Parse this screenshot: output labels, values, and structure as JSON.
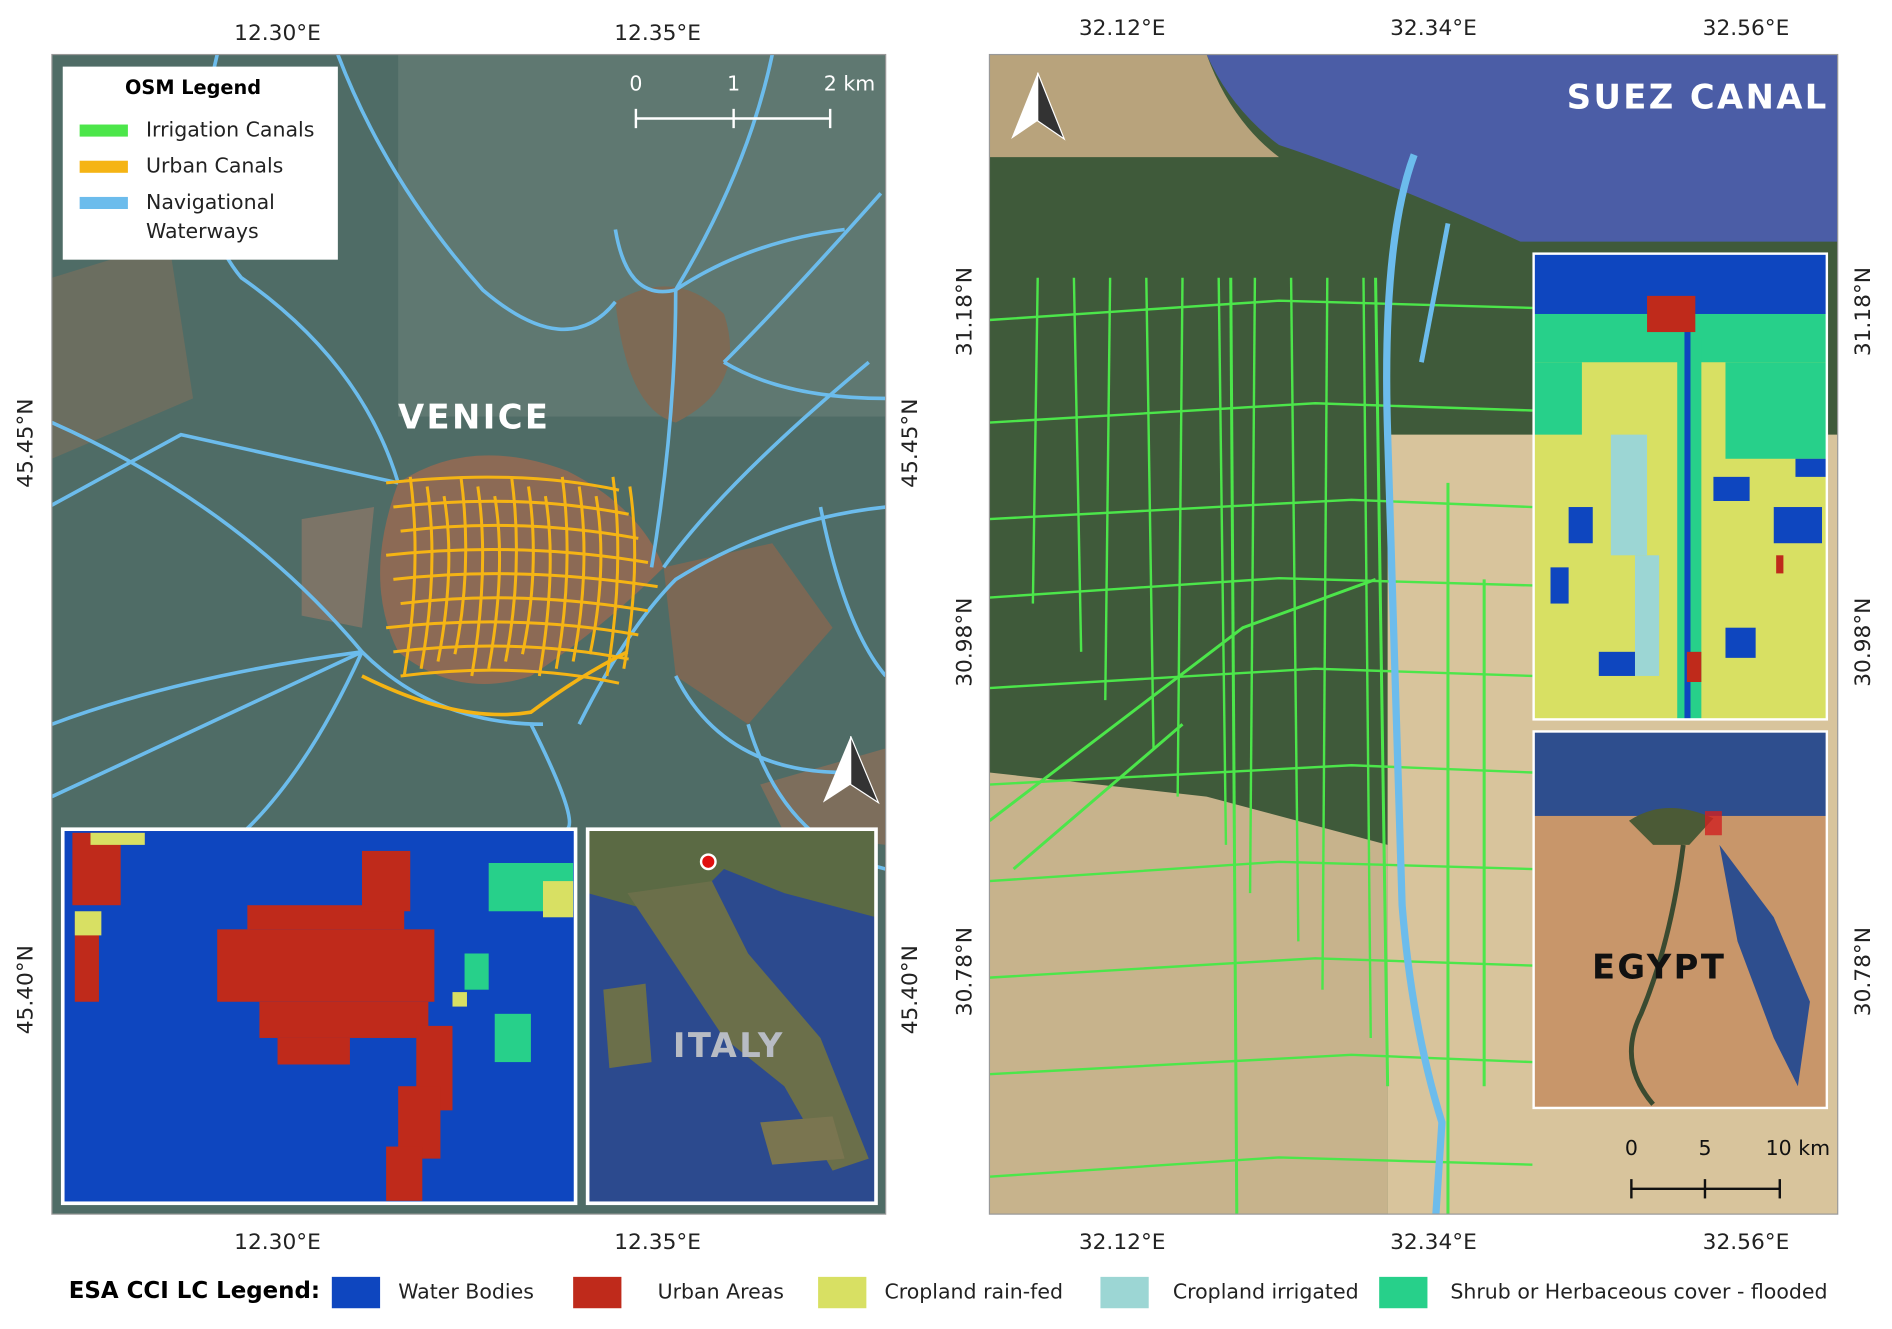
{
  "panels": [
    {
      "top_ticks": [
        "12.30°E",
        "12.35°E"
      ],
      "bottom_ticks": [
        "12.30°E",
        "12.35°E"
      ],
      "left_ticks": [
        "45.45°N",
        "45.40°N"
      ],
      "right_ticks": [
        "45.45°N",
        "45.40°N"
      ],
      "place_label": "VENICE",
      "inset_label": "ITALY",
      "scale_bar": [
        "0",
        "1",
        "2 km"
      ]
    },
    {
      "top_ticks": [
        "32.12°E",
        "32.34°E",
        "32.56°E"
      ],
      "bottom_ticks": [
        "32.12°E",
        "32.34°E",
        "32.56°E"
      ],
      "left_ticks": [
        "31.18°N",
        "30.98°N",
        "30.78°N"
      ],
      "right_ticks": [
        "31.18°N",
        "30.98°N",
        "30.78°N"
      ],
      "place_label": "SUEZ CANAL",
      "inset_label": "EGYPT",
      "scale_bar": [
        "0",
        "5",
        "10 km"
      ]
    }
  ],
  "osm_legend": {
    "title": "OSM Legend",
    "items": [
      {
        "label": [
          "Irrigation Canals"
        ],
        "color": "#4ce64a"
      },
      {
        "label": [
          "Urban Canals"
        ],
        "color": "#f5b414"
      },
      {
        "label": [
          "Navigational",
          "Waterways"
        ],
        "color": "#6cbcec"
      }
    ]
  },
  "lc_legend": {
    "title": "ESA CCI LC Legend:",
    "items": [
      {
        "label": "Water Bodies",
        "color": "#0e46bf"
      },
      {
        "label": "Urban Areas",
        "color": "#bf2a1b"
      },
      {
        "label": "Cropland rain-fed",
        "color": "#d8e063"
      },
      {
        "label": "Cropland irrigated",
        "color": "#9cd6d4"
      },
      {
        "label": "Shrub or Herbaceous cover - flooded",
        "color": "#27d08a"
      }
    ]
  }
}
